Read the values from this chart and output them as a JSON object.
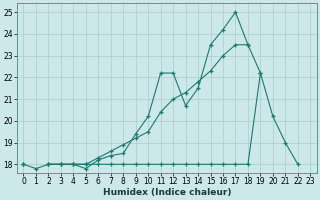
{
  "xlabel": "Humidex (Indice chaleur)",
  "x_values": [
    0,
    1,
    2,
    3,
    4,
    5,
    6,
    7,
    8,
    9,
    10,
    11,
    12,
    13,
    14,
    15,
    16,
    17,
    18,
    19,
    20,
    21,
    22,
    23
  ],
  "line1_y": [
    18.0,
    17.8,
    18.0,
    18.0,
    18.0,
    17.8,
    18.2,
    18.4,
    18.5,
    19.4,
    20.2,
    22.2,
    22.2,
    20.7,
    21.5,
    23.5,
    24.2,
    25.0,
    23.5,
    null,
    null,
    null,
    null,
    null
  ],
  "line2_y": [
    18.0,
    null,
    18.0,
    18.0,
    18.0,
    18.0,
    18.3,
    18.6,
    18.9,
    19.2,
    19.5,
    20.4,
    21.0,
    21.3,
    21.8,
    22.3,
    23.0,
    23.5,
    23.5,
    22.2,
    null,
    null,
    null,
    null
  ],
  "line3_y": [
    18.0,
    null,
    18.0,
    18.0,
    18.0,
    18.0,
    18.0,
    18.0,
    18.0,
    18.0,
    18.0,
    18.0,
    18.0,
    18.0,
    18.0,
    18.0,
    18.0,
    18.0,
    18.0,
    22.2,
    20.2,
    19.0,
    18.0,
    null
  ],
  "bg_color": "#cce8e8",
  "line_color": "#1a7a6e",
  "grid_color": "#aacccc",
  "ylim": [
    17.6,
    25.4
  ],
  "xlim": [
    -0.5,
    23.5
  ],
  "yticks": [
    18,
    19,
    20,
    21,
    22,
    23,
    24,
    25
  ],
  "xticks": [
    0,
    1,
    2,
    3,
    4,
    5,
    6,
    7,
    8,
    9,
    10,
    11,
    12,
    13,
    14,
    15,
    16,
    17,
    18,
    19,
    20,
    21,
    22,
    23
  ],
  "tick_fontsize": 5.5,
  "xlabel_fontsize": 6.5
}
